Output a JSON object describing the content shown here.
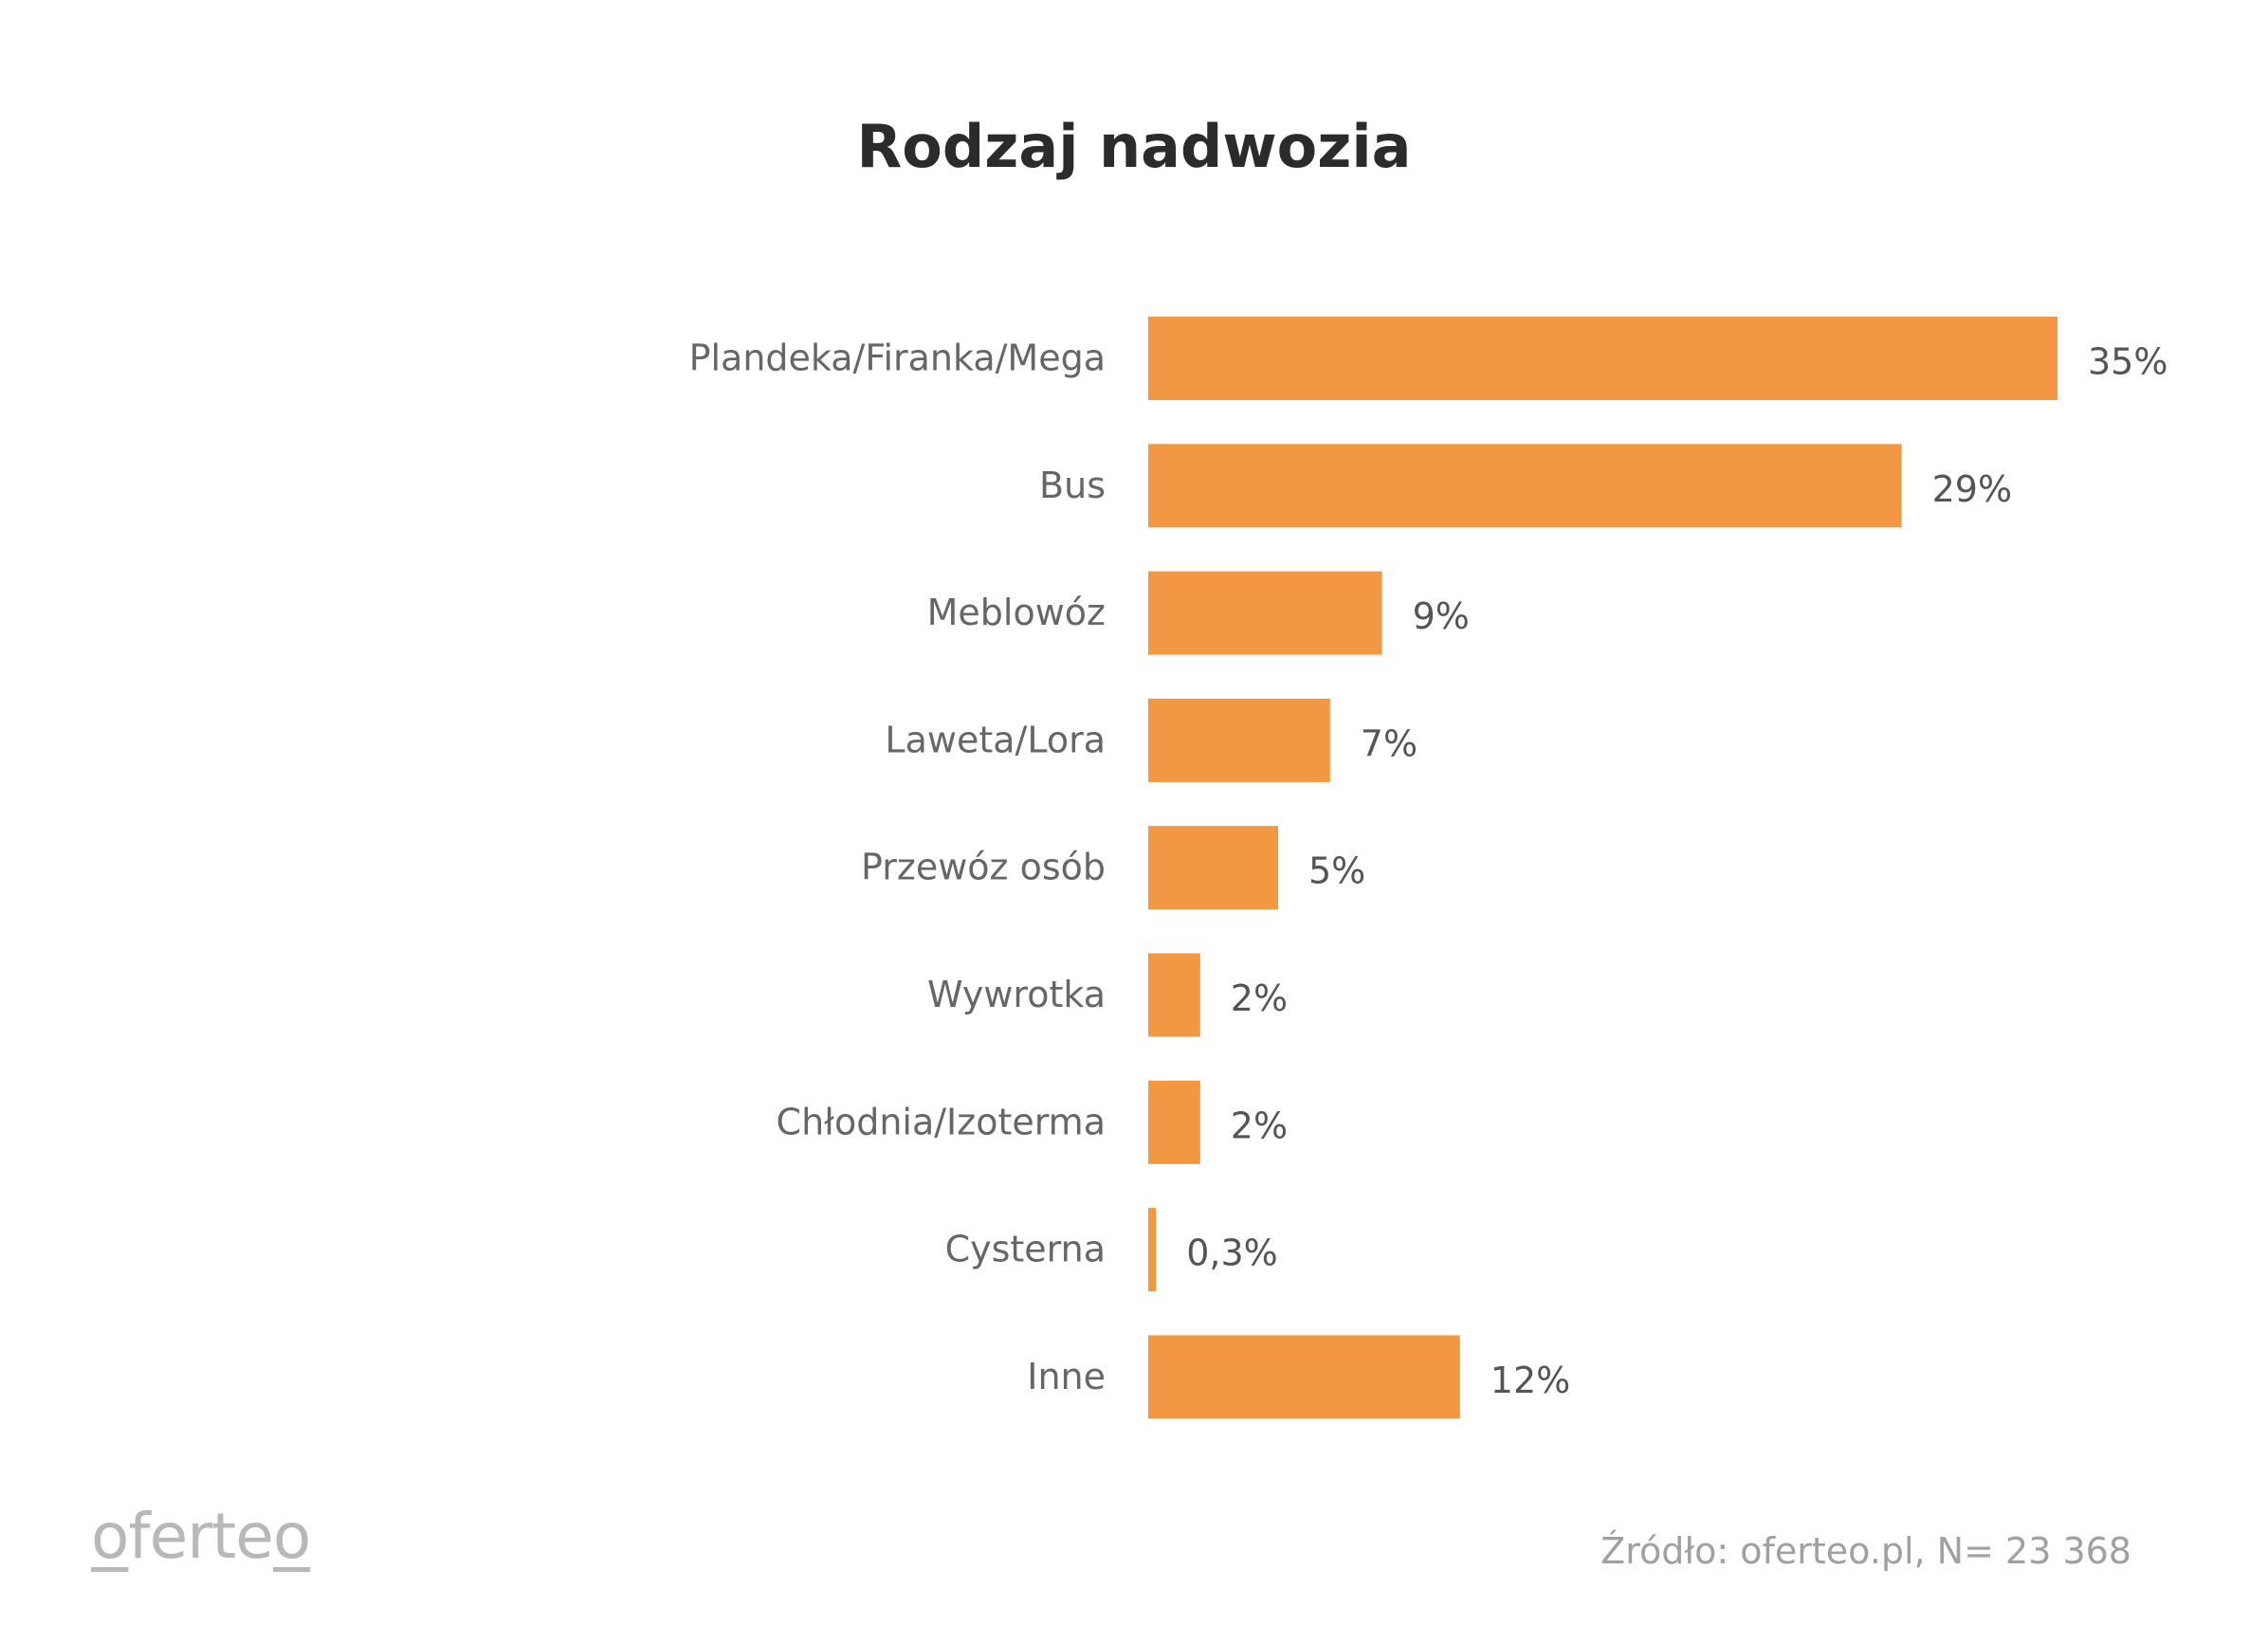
{
  "chart_data": {
    "type": "bar",
    "orientation": "horizontal",
    "title": "Rodzaj nadwozia",
    "categories": [
      "Plandeka/Firanka/Mega",
      "Bus",
      "Meblowóz",
      "Laweta/Lora",
      "Przewóz osób",
      "Wywrotka",
      "Chłodnia/Izoterma",
      "Cysterna",
      "Inne"
    ],
    "values": [
      35,
      29,
      9,
      7,
      5,
      2,
      2,
      0.3,
      12
    ],
    "value_labels": [
      "35%",
      "29%",
      "9%",
      "7%",
      "5%",
      "2%",
      "2%",
      "0,3%",
      "12%"
    ],
    "unit": "%",
    "bar_color": "#F39842",
    "grid": false,
    "legend": "none"
  },
  "footer": {
    "logo_text": "oferteo",
    "source": "Źródło: oferteo.pl, N= 23 368"
  }
}
